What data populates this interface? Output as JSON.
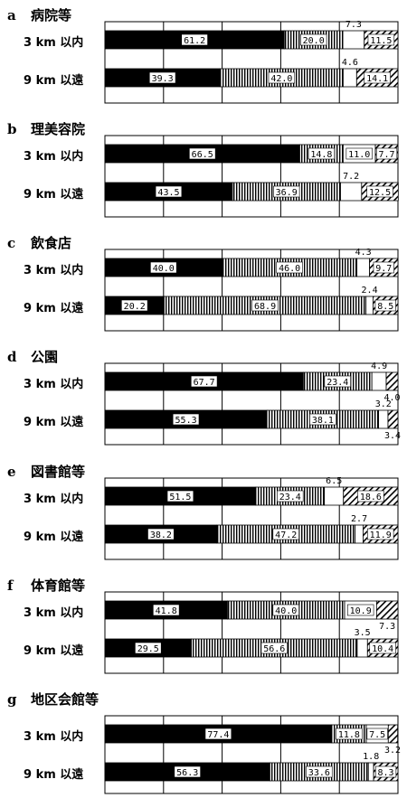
{
  "chart_data": [
    {
      "type": "bar",
      "stacked": true,
      "orientation": "horizontal",
      "letter": "a",
      "title": "病院等",
      "categories": [
        "3 km 以内",
        "9 km 以遠"
      ],
      "segments": [
        {
          "values": [
            61.2,
            20.0,
            7.3,
            11.5
          ],
          "labels": [
            "61.2",
            "20.0",
            "7.3",
            "11.5"
          ]
        },
        {
          "values": [
            39.3,
            42.0,
            4.6,
            14.1
          ],
          "labels": [
            "39.3",
            "42.0",
            "4.6",
            "14.1"
          ]
        }
      ],
      "xlim": [
        0,
        100
      ],
      "grid": true
    },
    {
      "type": "bar",
      "stacked": true,
      "orientation": "horizontal",
      "letter": "b",
      "title": "理美容院",
      "categories": [
        "3 km 以内",
        "9 km 以遠"
      ],
      "segments": [
        {
          "values": [
            66.5,
            14.8,
            11.0,
            7.7
          ],
          "labels": [
            "66.5",
            "14.8",
            "11.0",
            "7.7"
          ]
        },
        {
          "values": [
            43.5,
            36.9,
            7.2,
            12.5
          ],
          "labels": [
            "43.5",
            "36.9",
            "7.2",
            "12.5"
          ]
        }
      ],
      "xlim": [
        0,
        100
      ],
      "grid": true
    },
    {
      "type": "bar",
      "stacked": true,
      "orientation": "horizontal",
      "letter": "c",
      "title": "飲食店",
      "categories": [
        "3 km 以内",
        "9 km 以遠"
      ],
      "segments": [
        {
          "values": [
            40.0,
            46.0,
            4.3,
            9.7
          ],
          "labels": [
            "40.0",
            "46.0",
            "4.3",
            "9.7"
          ]
        },
        {
          "values": [
            20.2,
            68.9,
            2.4,
            8.5
          ],
          "labels": [
            "20.2",
            "68.9",
            "2.4",
            "8.5"
          ]
        }
      ],
      "xlim": [
        0,
        100
      ],
      "grid": true
    },
    {
      "type": "bar",
      "stacked": true,
      "orientation": "horizontal",
      "letter": "d",
      "title": "公園",
      "categories": [
        "3 km 以内",
        "9 km 以遠"
      ],
      "segments": [
        {
          "values": [
            67.7,
            23.4,
            4.9,
            4.0
          ],
          "labels": [
            "67.7",
            "23.4",
            "4.9",
            "4.0"
          ]
        },
        {
          "values": [
            55.3,
            38.1,
            3.2,
            3.4
          ],
          "labels": [
            "55.3",
            "38.1",
            "3.2",
            "3.4"
          ]
        }
      ],
      "xlim": [
        0,
        100
      ],
      "grid": true
    },
    {
      "type": "bar",
      "stacked": true,
      "orientation": "horizontal",
      "letter": "e",
      "title": "図書館等",
      "categories": [
        "3 km 以内",
        "9 km 以遠"
      ],
      "segments": [
        {
          "values": [
            51.5,
            23.4,
            6.5,
            18.6
          ],
          "labels": [
            "51.5",
            "23.4",
            "6.5",
            "18.6"
          ]
        },
        {
          "values": [
            38.2,
            47.2,
            2.7,
            11.9
          ],
          "labels": [
            "38.2",
            "47.2",
            "2.7",
            "11.9"
          ]
        }
      ],
      "xlim": [
        0,
        100
      ],
      "grid": true
    },
    {
      "type": "bar",
      "stacked": true,
      "orientation": "horizontal",
      "letter": "f",
      "title": "体育館等",
      "categories": [
        "3 km 以内",
        "9 km 以遠"
      ],
      "segments": [
        {
          "values": [
            41.8,
            40.0,
            10.9,
            7.3
          ],
          "labels": [
            "41.8",
            "40.0",
            "10.9",
            "7.3"
          ]
        },
        {
          "values": [
            29.5,
            56.6,
            3.5,
            10.4
          ],
          "labels": [
            "29.5",
            "56.6",
            "3.5",
            "10.4"
          ]
        }
      ],
      "xlim": [
        0,
        100
      ],
      "grid": true
    },
    {
      "type": "bar",
      "stacked": true,
      "orientation": "horizontal",
      "letter": "g",
      "title": "地区会館等",
      "categories": [
        "3 km 以内",
        "9 km 以遠"
      ],
      "segments": [
        {
          "values": [
            77.4,
            11.8,
            7.5,
            3.2
          ],
          "labels": [
            "77.4",
            "11.8",
            "7.5",
            "3.2"
          ]
        },
        {
          "values": [
            56.3,
            33.6,
            1.8,
            8.3
          ],
          "labels": [
            "56.3",
            "33.6",
            "1.8",
            "8.3"
          ]
        }
      ],
      "xlim": [
        0,
        100
      ],
      "grid": true
    }
  ]
}
